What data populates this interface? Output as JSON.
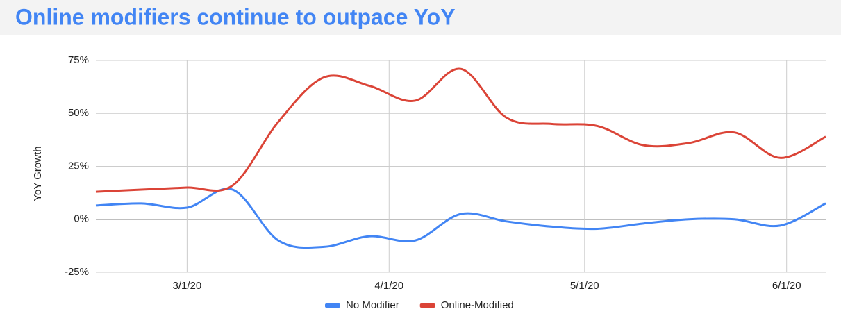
{
  "chart_data": {
    "type": "line",
    "title": "Online modifiers continue to outpace YoY",
    "y_label": "YoY Growth",
    "x": [
      "2/16/20",
      "2/23/20",
      "3/1/20",
      "3/8/20",
      "3/15/20",
      "3/22/20",
      "3/29/20",
      "4/5/20",
      "4/12/20",
      "4/19/20",
      "4/26/20",
      "5/3/20",
      "5/10/20",
      "5/17/20",
      "5/24/20",
      "5/31/20",
      "6/7/20"
    ],
    "series": [
      {
        "name": "No Modifier",
        "color": "#4285f4",
        "values": [
          6.5,
          7.5,
          5.5,
          14,
          -10,
          -13,
          -8,
          -10,
          2.5,
          -1,
          -3.5,
          -4.5,
          -2,
          0,
          0,
          -3,
          7.5
        ]
      },
      {
        "name": "Online-Modified",
        "color": "#db4437",
        "values": [
          13,
          14,
          15,
          16,
          46,
          67,
          63,
          56,
          71,
          48,
          45,
          44,
          35,
          36,
          41,
          29,
          39
        ]
      }
    ],
    "xlim": [
      "2/16/20",
      "6/7/20"
    ],
    "xticks": [
      "3/1/20",
      "4/1/20",
      "5/1/20",
      "6/1/20"
    ],
    "ylim": [
      -25,
      75
    ],
    "yticks": [
      {
        "value": -25,
        "label": "-25%"
      },
      {
        "value": 0,
        "label": "0%"
      },
      {
        "value": 25,
        "label": "25%"
      },
      {
        "value": 50,
        "label": "50%"
      },
      {
        "value": 75,
        "label": "75%"
      }
    ],
    "grid": true,
    "legend": "bottom"
  }
}
